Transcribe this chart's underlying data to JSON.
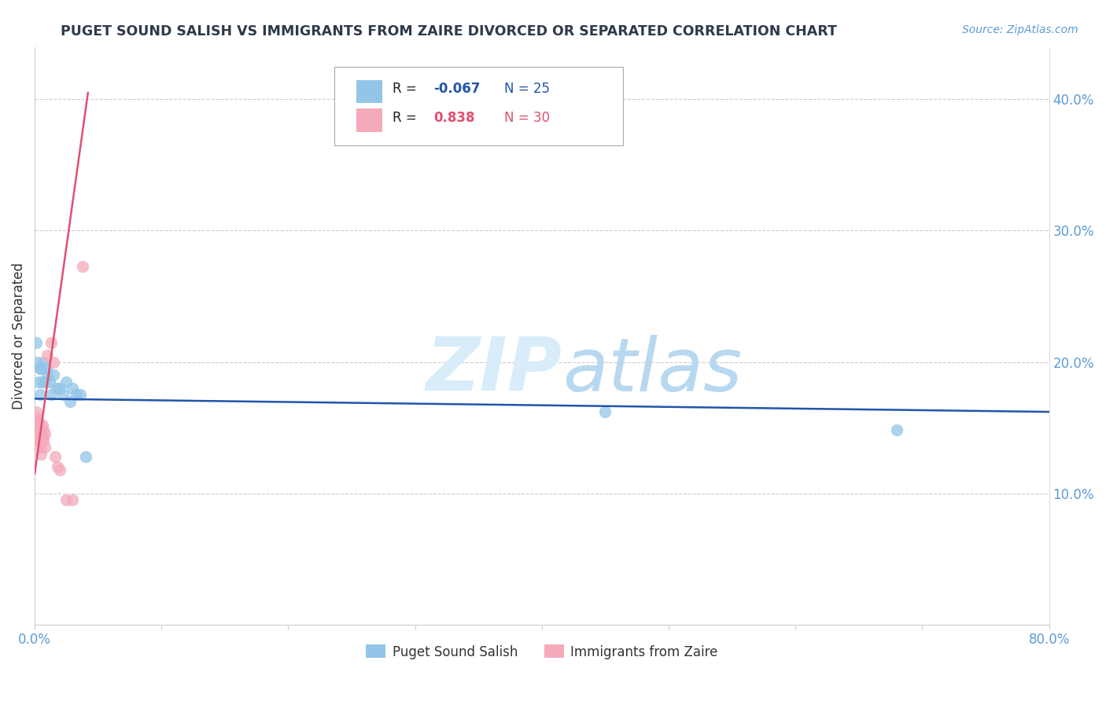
{
  "title": "PUGET SOUND SALISH VS IMMIGRANTS FROM ZAIRE DIVORCED OR SEPARATED CORRELATION CHART",
  "source": "Source: ZipAtlas.com",
  "ylabel": "Divorced or Separated",
  "ytick_vals": [
    0.1,
    0.2,
    0.3,
    0.4
  ],
  "ytick_labels": [
    "10.0%",
    "20.0%",
    "30.0%",
    "40.0%"
  ],
  "xlim": [
    0.0,
    0.8
  ],
  "ylim": [
    0.0,
    0.44
  ],
  "legend1_label": "Puget Sound Salish",
  "legend2_label": "Immigrants from Zaire",
  "R1": -0.067,
  "N1": 25,
  "R2": 0.838,
  "N2": 30,
  "blue_color": "#92C5E8",
  "pink_color": "#F4AABB",
  "line_blue": "#2255AA",
  "line_pink": "#E05070",
  "blue_scatter": [
    [
      0.001,
      0.215
    ],
    [
      0.002,
      0.2
    ],
    [
      0.003,
      0.185
    ],
    [
      0.004,
      0.195
    ],
    [
      0.004,
      0.175
    ],
    [
      0.005,
      0.195
    ],
    [
      0.006,
      0.185
    ],
    [
      0.007,
      0.2
    ],
    [
      0.008,
      0.185
    ],
    [
      0.009,
      0.195
    ],
    [
      0.01,
      0.19
    ],
    [
      0.012,
      0.185
    ],
    [
      0.013,
      0.175
    ],
    [
      0.015,
      0.19
    ],
    [
      0.017,
      0.18
    ],
    [
      0.02,
      0.18
    ],
    [
      0.022,
      0.175
    ],
    [
      0.025,
      0.185
    ],
    [
      0.028,
      0.17
    ],
    [
      0.03,
      0.18
    ],
    [
      0.033,
      0.175
    ],
    [
      0.036,
      0.175
    ],
    [
      0.04,
      0.128
    ],
    [
      0.45,
      0.162
    ],
    [
      0.68,
      0.148
    ]
  ],
  "pink_scatter": [
    [
      0.001,
      0.162
    ],
    [
      0.001,
      0.155
    ],
    [
      0.001,
      0.148
    ],
    [
      0.002,
      0.157
    ],
    [
      0.002,
      0.15
    ],
    [
      0.002,
      0.142
    ],
    [
      0.003,
      0.155
    ],
    [
      0.003,
      0.148
    ],
    [
      0.003,
      0.14
    ],
    [
      0.004,
      0.152
    ],
    [
      0.004,
      0.145
    ],
    [
      0.004,
      0.135
    ],
    [
      0.005,
      0.148
    ],
    [
      0.005,
      0.14
    ],
    [
      0.005,
      0.13
    ],
    [
      0.006,
      0.152
    ],
    [
      0.006,
      0.143
    ],
    [
      0.007,
      0.148
    ],
    [
      0.007,
      0.14
    ],
    [
      0.008,
      0.145
    ],
    [
      0.008,
      0.135
    ],
    [
      0.01,
      0.205
    ],
    [
      0.013,
      0.215
    ],
    [
      0.015,
      0.2
    ],
    [
      0.016,
      0.128
    ],
    [
      0.018,
      0.12
    ],
    [
      0.02,
      0.118
    ],
    [
      0.025,
      0.095
    ],
    [
      0.03,
      0.095
    ],
    [
      0.038,
      0.273
    ]
  ],
  "blue_line_x": [
    0.0,
    0.8
  ],
  "blue_line_y": [
    0.172,
    0.162
  ],
  "pink_line_x": [
    0.0,
    0.042
  ],
  "pink_line_y": [
    0.115,
    0.405
  ]
}
